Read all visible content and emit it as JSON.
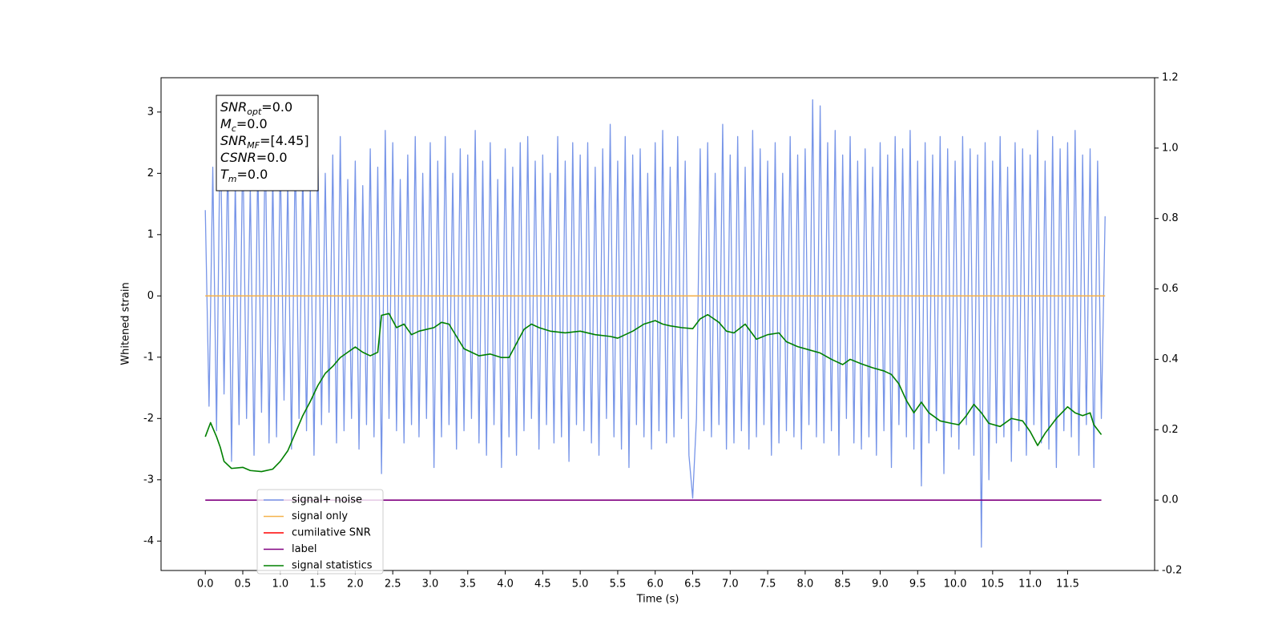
{
  "chart_data": {
    "type": "line",
    "xlabel": "Time (s)",
    "ylabel": "Whitened strain",
    "xlim": [
      -0.59,
      12.66
    ],
    "ylim": [
      -4.48,
      3.56
    ],
    "y2lim": [
      -0.2,
      1.2
    ],
    "xticks": [
      {
        "value": 0,
        "label": "0.0"
      },
      0.5,
      {
        "value": 1,
        "label": "1.0"
      },
      1.5,
      {
        "value": 2,
        "label": "2.0"
      },
      2.5,
      {
        "value": 3,
        "label": "3.0"
      },
      3.5,
      {
        "value": 4,
        "label": "4.0"
      },
      4.5,
      {
        "value": 5,
        "label": "5.0"
      },
      5.5,
      {
        "value": 6,
        "label": "6.0"
      },
      6.5,
      {
        "value": 7,
        "label": "7.0"
      },
      7.5,
      {
        "value": 8,
        "label": "8.0"
      },
      8.5,
      {
        "value": 9,
        "label": "9.0"
      },
      9.5,
      {
        "value": 10,
        "label": "10.0"
      },
      10.5,
      {
        "value": 11,
        "label": "11.0"
      },
      11.5
    ],
    "yticks": [
      -4,
      -3,
      -2,
      -1,
      0,
      1,
      2,
      3
    ],
    "y2ticks": [
      -0.2,
      {
        "value": 0,
        "label": "0.0"
      },
      0.2,
      0.4,
      0.6,
      0.8,
      {
        "value": 1,
        "label": "1.0"
      },
      1.2
    ],
    "grid": false,
    "legend": "lower left",
    "annotations": [
      {
        "base": "SNR",
        "sub": "opt",
        "text": "=0.0"
      },
      {
        "base": "M",
        "sub": "c",
        "text": "=0.0"
      },
      {
        "base": "SNR",
        "sub": "MF",
        "text": "=[4.45]"
      },
      {
        "base": "CSNR",
        "sub": null,
        "text": "=0.0"
      },
      {
        "base": "T",
        "sub": "m",
        "text": "=0.0"
      }
    ],
    "series": [
      {
        "name": "signal+ noise",
        "color": "#7795e8",
        "axis": "y",
        "x": [
          0,
          0.05,
          0.1,
          0.15,
          0.2,
          0.25,
          0.3,
          0.35,
          0.4,
          0.45,
          0.5,
          0.55,
          0.6,
          0.65,
          0.7,
          0.75,
          0.8,
          0.85,
          0.9,
          0.95,
          1,
          1.05,
          1.1,
          1.15,
          1.2,
          1.25,
          1.3,
          1.35,
          1.4,
          1.45,
          1.5,
          1.55,
          1.6,
          1.65,
          1.7,
          1.75,
          1.8,
          1.85,
          1.9,
          1.95,
          2,
          2.05,
          2.1,
          2.15,
          2.2,
          2.25,
          2.3,
          2.35,
          2.4,
          2.45,
          2.5,
          2.55,
          2.6,
          2.65,
          2.7,
          2.75,
          2.8,
          2.85,
          2.9,
          2.95,
          3,
          3.05,
          3.1,
          3.15,
          3.2,
          3.25,
          3.3,
          3.35,
          3.4,
          3.45,
          3.5,
          3.55,
          3.6,
          3.65,
          3.7,
          3.75,
          3.8,
          3.85,
          3.9,
          3.95,
          4,
          4.05,
          4.1,
          4.15,
          4.2,
          4.25,
          4.3,
          4.35,
          4.4,
          4.45,
          4.5,
          4.55,
          4.6,
          4.65,
          4.7,
          4.75,
          4.8,
          4.85,
          4.9,
          4.95,
          5,
          5.05,
          5.1,
          5.15,
          5.2,
          5.25,
          5.3,
          5.35,
          5.4,
          5.45,
          5.5,
          5.55,
          5.6,
          5.65,
          5.7,
          5.75,
          5.8,
          5.85,
          5.9,
          5.95,
          6,
          6.05,
          6.1,
          6.15,
          6.2,
          6.25,
          6.3,
          6.35,
          6.4,
          6.45,
          6.5,
          6.55,
          6.6,
          6.65,
          6.7,
          6.75,
          6.8,
          6.85,
          6.9,
          6.95,
          7,
          7.05,
          7.1,
          7.15,
          7.2,
          7.25,
          7.3,
          7.35,
          7.4,
          7.45,
          7.5,
          7.55,
          7.6,
          7.65,
          7.7,
          7.75,
          7.8,
          7.85,
          7.9,
          7.95,
          8,
          8.05,
          8.1,
          8.15,
          8.2,
          8.25,
          8.3,
          8.35,
          8.4,
          8.45,
          8.5,
          8.55,
          8.6,
          8.65,
          8.7,
          8.75,
          8.8,
          8.85,
          8.9,
          8.95,
          9,
          9.05,
          9.1,
          9.15,
          9.2,
          9.25,
          9.3,
          9.35,
          9.4,
          9.45,
          9.5,
          9.55,
          9.6,
          9.65,
          9.7,
          9.75,
          9.8,
          9.85,
          9.9,
          9.95,
          10,
          10.05,
          10.1,
          10.15,
          10.2,
          10.25,
          10.3,
          10.35,
          10.4,
          10.45,
          10.5,
          10.55,
          10.6,
          10.65,
          10.7,
          10.75,
          10.8,
          10.85,
          10.9,
          10.95,
          11,
          11.05,
          11.1,
          11.15,
          11.2,
          11.25,
          11.3,
          11.35,
          11.4,
          11.45,
          11.5,
          11.55,
          11.6,
          11.65,
          11.7,
          11.75,
          11.8,
          11.85,
          11.9,
          11.95,
          12
        ],
        "values": [
          1.4,
          -1.8,
          2.1,
          -2.2,
          2.9,
          -1.6,
          2.3,
          -2.7,
          1.9,
          -2.1,
          2.5,
          -2.0,
          1.8,
          -2.6,
          2.2,
          -1.9,
          2.6,
          -2.4,
          2.0,
          -2.3,
          2.3,
          -1.7,
          1.9,
          -2.5,
          2.4,
          -2.0,
          2.1,
          -2.2,
          1.8,
          -2.6,
          2.4,
          -2.1,
          2.0,
          -1.9,
          2.3,
          -2.4,
          2.6,
          -2.2,
          1.9,
          -2.0,
          2.2,
          -2.5,
          1.8,
          -2.1,
          2.4,
          -2.3,
          2.1,
          -2.9,
          2.7,
          -2.0,
          2.5,
          -2.2,
          1.9,
          -2.4,
          2.3,
          -2.1,
          2.6,
          -2.3,
          2.0,
          -2.0,
          2.5,
          -2.8,
          2.2,
          -2.3,
          2.6,
          -2.1,
          2.0,
          -2.5,
          2.4,
          -2.2,
          2.3,
          -2.0,
          2.7,
          -2.4,
          2.2,
          -2.6,
          2.5,
          -2.1,
          1.9,
          -2.8,
          2.4,
          -2.3,
          2.1,
          -2.6,
          2.5,
          -2.2,
          2.6,
          -2.0,
          2.2,
          -2.5,
          2.3,
          -2.1,
          2.0,
          -2.4,
          2.6,
          -2.3,
          2.2,
          -2.7,
          2.5,
          -2.1,
          2.3,
          -2.2,
          2.5,
          -2.4,
          2.1,
          -2.6,
          2.4,
          -2.0,
          2.8,
          -2.3,
          2.2,
          -2.5,
          2.6,
          -2.8,
          2.3,
          -2.1,
          2.4,
          -2.3,
          2.0,
          -2.5,
          2.5,
          -2.2,
          2.7,
          -2.4,
          2.1,
          -2.3,
          2.6,
          -2.0,
          2.2,
          -2.6,
          -3.3,
          -2.0,
          2.4,
          -2.2,
          2.5,
          -2.3,
          2.0,
          -2.1,
          2.8,
          -2.5,
          2.3,
          -2.4,
          2.6,
          -2.2,
          2.1,
          -2.5,
          2.7,
          -2.3,
          2.4,
          -2.1,
          2.2,
          -2.6,
          2.5,
          -2.4,
          2.0,
          -2.2,
          2.6,
          -2.3,
          2.3,
          -2.5,
          2.4,
          -2.1,
          3.2,
          -2.3,
          3.1,
          -2.4,
          2.5,
          -2.2,
          2.7,
          -2.6,
          2.3,
          -2.0,
          2.6,
          -2.4,
          2.2,
          -2.5,
          2.4,
          -2.3,
          2.1,
          -2.6,
          2.5,
          -2.2,
          2.3,
          -2.8,
          2.6,
          -2.1,
          2.4,
          -2.3,
          2.7,
          -2.5,
          2.2,
          -3.1,
          2.5,
          -2.4,
          2.3,
          -2.2,
          2.6,
          -2.9,
          2.4,
          -2.3,
          2.2,
          -2.5,
          2.6,
          -2.1,
          2.4,
          -2.6,
          2.3,
          -4.1,
          2.5,
          -3.0,
          2.2,
          -2.4,
          2.6,
          -2.3,
          2.1,
          -2.7,
          2.5,
          -2.2,
          2.4,
          -2.6,
          2.3,
          -2.1,
          2.7,
          -2.4,
          2.2,
          -2.5,
          2.6,
          -2.8,
          2.4,
          -2.2,
          2.5,
          -2.3,
          2.7,
          -2.6,
          2.3,
          -2.1,
          2.4,
          -2.8,
          2.2,
          -2.0,
          1.3
        ]
      },
      {
        "name": "signal only",
        "color": "#f5b24d",
        "axis": "y",
        "x": [
          0,
          12
        ],
        "values": [
          0,
          0
        ]
      },
      {
        "name": "cumilative SNR",
        "color": "#ff0000",
        "axis": "y",
        "x": [],
        "values": []
      },
      {
        "name": "label",
        "color": "#800080",
        "axis": "y2",
        "x": [
          0,
          11.95
        ],
        "values": [
          0,
          0
        ]
      },
      {
        "name": "signal statistics",
        "color": "#008000",
        "axis": "y2",
        "x": [
          0,
          0.07,
          0.15,
          0.2,
          0.25,
          0.35,
          0.5,
          0.6,
          0.75,
          0.9,
          1.0,
          1.1,
          1.2,
          1.3,
          1.4,
          1.5,
          1.6,
          1.7,
          1.8,
          1.9,
          2.0,
          2.1,
          2.2,
          2.3,
          2.35,
          2.45,
          2.55,
          2.65,
          2.75,
          2.85,
          2.95,
          3.05,
          3.15,
          3.25,
          3.35,
          3.45,
          3.55,
          3.65,
          3.8,
          3.95,
          4.05,
          4.15,
          4.25,
          4.35,
          4.45,
          4.6,
          4.8,
          5.0,
          5.2,
          5.4,
          5.5,
          5.6,
          5.7,
          5.85,
          6.0,
          6.1,
          6.2,
          6.35,
          6.5,
          6.6,
          6.7,
          6.85,
          6.95,
          7.05,
          7.2,
          7.35,
          7.5,
          7.65,
          7.75,
          7.9,
          8.05,
          8.2,
          8.35,
          8.5,
          8.6,
          8.75,
          8.9,
          9.05,
          9.15,
          9.25,
          9.35,
          9.45,
          9.55,
          9.65,
          9.8,
          9.95,
          10.05,
          10.15,
          10.25,
          10.35,
          10.45,
          10.6,
          10.75,
          10.9,
          11.0,
          11.1,
          11.2,
          11.35,
          11.5,
          11.6,
          11.7,
          11.8,
          11.85,
          11.95
        ],
        "values": [
          0.18,
          0.22,
          0.18,
          0.15,
          0.11,
          0.09,
          0.093,
          0.084,
          0.081,
          0.088,
          0.11,
          0.14,
          0.19,
          0.24,
          0.28,
          0.325,
          0.36,
          0.38,
          0.405,
          0.42,
          0.435,
          0.42,
          0.41,
          0.42,
          0.525,
          0.53,
          0.49,
          0.5,
          0.47,
          0.48,
          0.485,
          0.49,
          0.505,
          0.5,
          0.465,
          0.43,
          0.42,
          0.41,
          0.415,
          0.405,
          0.405,
          0.445,
          0.485,
          0.5,
          0.49,
          0.48,
          0.475,
          0.48,
          0.47,
          0.465,
          0.46,
          0.47,
          0.48,
          0.5,
          0.51,
          0.5,
          0.495,
          0.49,
          0.487,
          0.515,
          0.527,
          0.505,
          0.48,
          0.475,
          0.5,
          0.457,
          0.47,
          0.475,
          0.45,
          0.436,
          0.427,
          0.418,
          0.4,
          0.385,
          0.4,
          0.387,
          0.376,
          0.367,
          0.357,
          0.33,
          0.283,
          0.248,
          0.278,
          0.248,
          0.225,
          0.218,
          0.214,
          0.24,
          0.272,
          0.248,
          0.218,
          0.209,
          0.232,
          0.225,
          0.195,
          0.155,
          0.19,
          0.232,
          0.265,
          0.248,
          0.24,
          0.248,
          0.214,
          0.186
        ]
      }
    ]
  }
}
